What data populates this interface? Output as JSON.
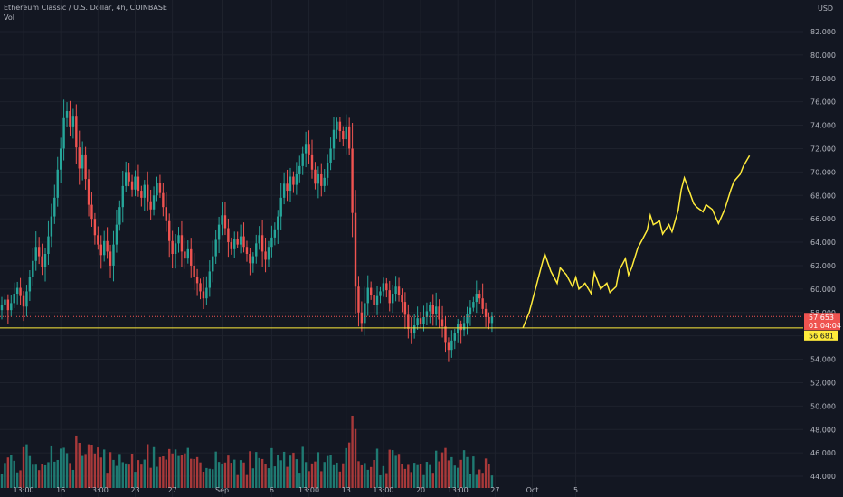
{
  "header": {
    "title": "Ethereum Classic / U.S. Dollar, 4h, COINBASE",
    "vol_label": "Vol"
  },
  "currency": "USD",
  "colors": {
    "background": "#131722",
    "up": "#26a69a",
    "down": "#ef5350",
    "up_vol": "#1f7a72",
    "down_vol": "#a8393a",
    "projection": "#ffeb3b",
    "hline": "#ffeb3b",
    "grid": "#1e222d"
  },
  "price_tags": {
    "current_price": "57.653",
    "countdown": "01:04:04",
    "level": "56.681"
  },
  "chart_data": {
    "type": "candlestick",
    "ylim": [
      43,
      83
    ],
    "y_ticks": [
      "82.000",
      "80.000",
      "78.000",
      "76.000",
      "74.000",
      "72.000",
      "70.000",
      "68.000",
      "66.000",
      "64.000",
      "62.000",
      "60.000",
      "58.000",
      "56.000",
      "54.000",
      "52.000",
      "50.000",
      "48.000",
      "46.000",
      "44.000"
    ],
    "y_tick_values": [
      82,
      80,
      78,
      76,
      74,
      72,
      70,
      68,
      66,
      64,
      62,
      60,
      58,
      56,
      54,
      52,
      50,
      48,
      46,
      44
    ],
    "x_ticks": [
      "13:00",
      "16",
      "13:00",
      "23",
      "27",
      "Sep",
      "6",
      "13:00",
      "13",
      "13:00",
      "20",
      "13:00",
      "27",
      "Oct",
      "5"
    ],
    "x_tick_index": [
      7,
      19,
      31,
      43,
      55,
      71,
      87,
      99,
      111,
      123,
      135,
      147,
      159,
      171,
      185
    ],
    "horizontal_level": 56.681,
    "current_price": 57.653,
    "closes": [
      58.6,
      59.1,
      58.2,
      58.8,
      59.6,
      60.1,
      59.4,
      58.5,
      59.8,
      61.0,
      62.4,
      63.6,
      62.8,
      61.9,
      63.0,
      64.5,
      66.2,
      67.8,
      70.2,
      72.0,
      74.6,
      75.2,
      73.9,
      74.8,
      72.1,
      70.3,
      71.5,
      69.4,
      67.2,
      66.0,
      64.6,
      63.8,
      62.9,
      64.1,
      63.2,
      62.0,
      63.8,
      65.5,
      67.0,
      68.8,
      70.0,
      69.2,
      68.5,
      69.6,
      68.4,
      67.8,
      68.9,
      67.5,
      66.8,
      68.0,
      69.1,
      68.2,
      67.0,
      65.8,
      64.1,
      63.0,
      63.9,
      64.6,
      63.2,
      62.6,
      63.4,
      62.0,
      61.0,
      60.5,
      59.8,
      59.2,
      60.1,
      61.5,
      62.8,
      64.2,
      65.5,
      66.3,
      65.2,
      64.0,
      63.4,
      64.3,
      63.8,
      64.5,
      63.6,
      63.0,
      62.2,
      62.8,
      63.9,
      64.6,
      63.2,
      62.5,
      63.6,
      64.4,
      65.1,
      66.2,
      67.8,
      69.0,
      68.4,
      69.6,
      68.9,
      69.8,
      70.5,
      71.6,
      72.4,
      71.5,
      70.2,
      69.0,
      69.8,
      68.8,
      69.5,
      70.8,
      72.0,
      73.6,
      74.3,
      73.5,
      72.8,
      73.9,
      72.0,
      66.5,
      60.2,
      58.0,
      57.1,
      58.8,
      60.1,
      59.5,
      58.6,
      59.4,
      59.8,
      60.5,
      59.9,
      58.8,
      59.6,
      60.2,
      59.5,
      58.9,
      57.8,
      56.6,
      56.2,
      56.9,
      57.5,
      57.0,
      57.6,
      58.1,
      58.6,
      57.9,
      58.5,
      57.4,
      56.8,
      55.4,
      54.8,
      55.6,
      56.2,
      57.0,
      56.5,
      57.1,
      57.9,
      58.4,
      58.9,
      59.6,
      59.2,
      58.3,
      57.6,
      57.1,
      57.653
    ],
    "projection": [
      [
        168,
        56.7
      ],
      [
        170,
        58.0
      ],
      [
        172,
        60.0
      ],
      [
        174,
        62.0
      ],
      [
        175,
        63.0
      ],
      [
        177,
        61.5
      ],
      [
        179,
        60.5
      ],
      [
        180,
        61.8
      ],
      [
        182,
        61.2
      ],
      [
        184,
        60.2
      ],
      [
        185,
        61.0
      ],
      [
        186,
        60.0
      ],
      [
        188,
        60.5
      ],
      [
        190,
        59.6
      ],
      [
        191,
        61.4
      ],
      [
        193,
        60.0
      ],
      [
        195,
        60.5
      ],
      [
        196,
        59.7
      ],
      [
        198,
        60.2
      ],
      [
        199,
        61.6
      ],
      [
        201,
        62.6
      ],
      [
        202,
        61.2
      ],
      [
        203,
        61.8
      ],
      [
        205,
        63.5
      ],
      [
        206,
        64.0
      ],
      [
        208,
        65.0
      ],
      [
        209,
        66.3
      ],
      [
        210,
        65.5
      ],
      [
        212,
        65.8
      ],
      [
        213,
        64.7
      ],
      [
        215,
        65.5
      ],
      [
        216,
        64.9
      ],
      [
        218,
        66.7
      ],
      [
        219,
        68.5
      ],
      [
        220,
        69.5
      ],
      [
        221,
        68.8
      ],
      [
        223,
        67.3
      ],
      [
        224,
        67.0
      ],
      [
        226,
        66.6
      ],
      [
        227,
        67.2
      ],
      [
        229,
        66.8
      ],
      [
        231,
        65.6
      ],
      [
        232,
        66.2
      ],
      [
        233,
        66.8
      ],
      [
        235,
        68.5
      ],
      [
        236,
        69.2
      ],
      [
        238,
        69.8
      ],
      [
        239,
        70.5
      ],
      [
        241,
        71.4
      ]
    ]
  }
}
